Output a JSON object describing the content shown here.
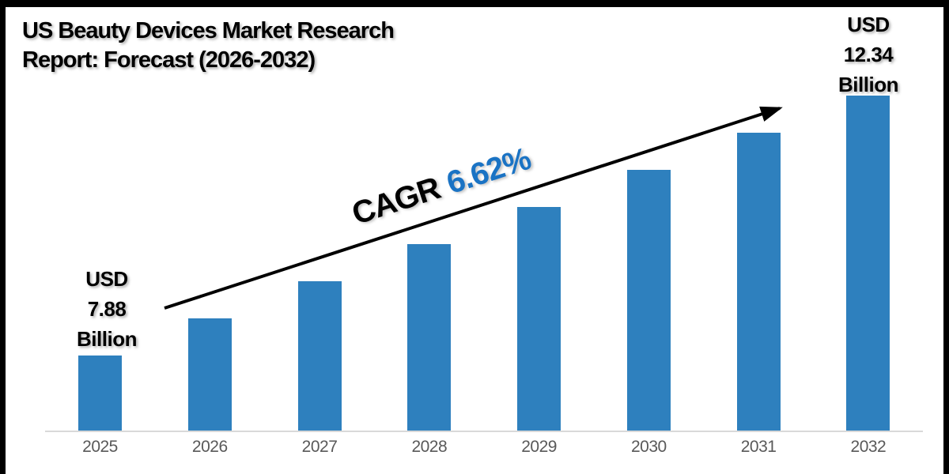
{
  "title": {
    "line1": "US Beauty Devices Market Research",
    "line2": "Report: Forecast (2026-2032)"
  },
  "annotations": {
    "first_bar_label": {
      "line1": "USD",
      "line2": "7.88",
      "line3": "Billion"
    },
    "last_bar_label": {
      "line1": "USD",
      "line2": "12.34",
      "line3": "Billion"
    },
    "cagr": {
      "prefix": "CAGR",
      "value": "6.62%"
    }
  },
  "colors": {
    "bar": "#2e80be",
    "cagr_value_text": "#1a73c4",
    "title_text": "#000000",
    "axis_line": "#d9d9d9",
    "tick_text": "#595959",
    "frame_border": "#000000",
    "arrow": "#000000"
  },
  "chart_data": {
    "type": "bar",
    "title": "US Beauty Devices Market Research Report: Forecast (2026-2032)",
    "unit": "USD Billion",
    "categories": [
      "2025",
      "2026",
      "2027",
      "2028",
      "2029",
      "2030",
      "2031",
      "2032"
    ],
    "values": [
      7.88,
      8.4,
      8.96,
      9.55,
      10.18,
      10.86,
      11.58,
      12.34
    ],
    "value_labels_visible": {
      "2025": "USD 7.88 Billion",
      "2032": "USD 12.34 Billion"
    },
    "cagr_percent": 6.62,
    "xlabel": "",
    "ylabel": "",
    "y_axis_visible": false,
    "x_axis_visible": true,
    "grid": false,
    "legend": false
  }
}
